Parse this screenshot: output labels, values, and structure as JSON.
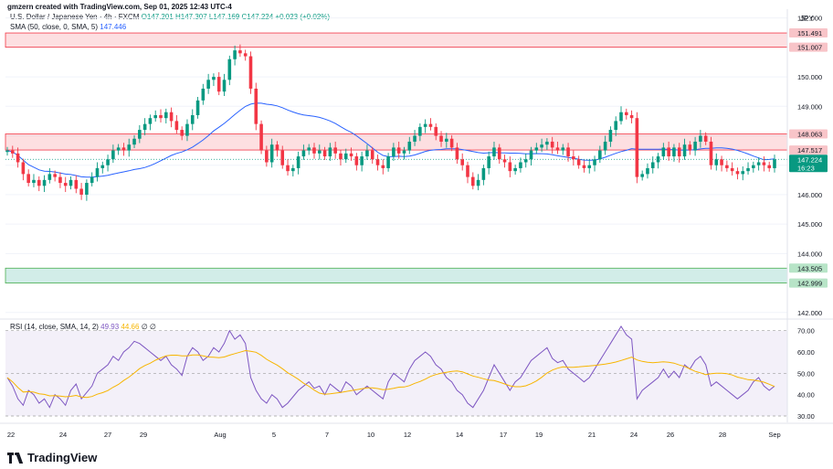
{
  "header": {
    "title": "gmzern created with TradingView.com, Sep 01, 2025 12:43 UTC-4"
  },
  "legend": {
    "symbol": "U.S. Dollar / Japanese Yen · 4h · FXCM",
    "ohlc": "O147.201 H147.307 L147.169 C147.224 +0.023 (+0.02%)",
    "sma_label": "SMA (50, close, 0, SMA, 5)",
    "sma_value": "147.446",
    "rsi_label": "RSI (14, close, SMA, 14, 2)",
    "rsi_value": "49.93",
    "rsi_sma_value": "44.66",
    "rsi_extra": "∅ ∅"
  },
  "currency": "JPY",
  "brand": "TradingView",
  "colors": {
    "up": "#089981",
    "down": "#f23645",
    "sma": "#2962ff",
    "rsi": "#7e57c2",
    "rsi_ma": "#f7b500"
  },
  "chart_data": [
    {
      "type": "candlestick",
      "ylim": [
        141.9,
        152.3
      ],
      "yticks": [
        "152.000",
        "151.000",
        "150.000",
        "149.000",
        "148.000",
        "147.000",
        "146.000",
        "145.000",
        "144.000",
        "143.000",
        "142.000"
      ],
      "xticks": [
        "22",
        "24",
        "27",
        "29",
        "Aug",
        "5",
        "7",
        "10",
        "12",
        "14",
        "17",
        "19",
        "21",
        "24",
        "26",
        "28",
        "Sep"
      ],
      "price_labels": [
        {
          "text": "151.491",
          "kind": "red"
        },
        {
          "text": "151.007",
          "kind": "red"
        },
        {
          "text": "148.063",
          "kind": "red"
        },
        {
          "text": "147.517",
          "kind": "red"
        },
        {
          "text": "147.224",
          "kind": "current"
        },
        {
          "text": "16:23",
          "kind": "current"
        },
        {
          "text": "143.505",
          "kind": "green"
        },
        {
          "text": "142.999",
          "kind": "green"
        }
      ],
      "zones": [
        {
          "from": 151.007,
          "to": 151.491,
          "kind": "resistance"
        },
        {
          "from": 147.517,
          "to": 148.063,
          "kind": "resistance"
        },
        {
          "from": 142.999,
          "to": 143.505,
          "kind": "support"
        }
      ],
      "close": [
        147.5,
        147.4,
        147.1,
        146.7,
        146.4,
        146.5,
        146.3,
        146.5,
        146.7,
        146.6,
        146.4,
        146.3,
        146.5,
        146.2,
        146.0,
        146.4,
        146.6,
        146.9,
        147.0,
        147.2,
        147.5,
        147.6,
        147.5,
        147.7,
        147.9,
        148.2,
        148.4,
        148.6,
        148.7,
        148.6,
        148.8,
        148.5,
        148.2,
        148.0,
        148.4,
        148.7,
        149.2,
        149.6,
        149.9,
        150.0,
        149.5,
        149.9,
        150.6,
        150.9,
        150.8,
        150.7,
        149.6,
        148.4,
        147.5,
        147.1,
        147.7,
        147.5,
        147.0,
        146.8,
        146.9,
        147.3,
        147.5,
        147.6,
        147.4,
        147.5,
        147.3,
        147.6,
        147.4,
        147.2,
        147.4,
        147.3,
        147.0,
        147.3,
        147.5,
        147.2,
        147.0,
        146.9,
        147.3,
        147.6,
        147.4,
        147.5,
        147.8,
        148.0,
        148.3,
        148.4,
        148.3,
        148.0,
        147.8,
        147.9,
        147.6,
        147.2,
        147.0,
        146.6,
        146.3,
        146.5,
        146.9,
        147.3,
        147.6,
        147.2,
        147.1,
        146.8,
        146.9,
        147.1,
        147.2,
        147.5,
        147.6,
        147.7,
        147.8,
        147.6,
        147.5,
        147.6,
        147.3,
        147.2,
        147.0,
        146.9,
        147.0,
        147.2,
        147.5,
        147.8,
        148.2,
        148.5,
        148.8,
        148.7,
        148.6,
        146.6,
        146.7,
        146.9,
        147.1,
        147.3,
        147.6,
        147.3,
        147.6,
        147.3,
        147.7,
        147.5,
        147.8,
        148.0,
        147.8,
        147.0,
        147.2,
        147.0,
        146.9,
        146.8,
        146.7,
        146.8,
        146.9,
        147.0,
        147.1,
        147.0,
        146.9,
        147.2
      ]
    },
    {
      "type": "line",
      "name": "RSI",
      "ylim": [
        27,
        72
      ],
      "yticks": [
        "70.00",
        "60.00",
        "50.00",
        "40.00",
        "30.00"
      ],
      "bands": [
        30,
        50,
        70
      ],
      "values": [
        48,
        44,
        38,
        35,
        42,
        40,
        36,
        38,
        34,
        40,
        38,
        35,
        42,
        45,
        38,
        41,
        44,
        50,
        52,
        54,
        58,
        56,
        60,
        62,
        65,
        64,
        62,
        60,
        58,
        56,
        58,
        54,
        52,
        49,
        58,
        62,
        60,
        56,
        58,
        62,
        60,
        64,
        70,
        66,
        68,
        64,
        48,
        42,
        38,
        36,
        40,
        38,
        34,
        36,
        39,
        42,
        44,
        46,
        43,
        44,
        40,
        45,
        43,
        41,
        46,
        44,
        40,
        42,
        44,
        42,
        40,
        38,
        46,
        50,
        48,
        46,
        52,
        56,
        58,
        60,
        58,
        54,
        52,
        48,
        46,
        42,
        40,
        36,
        34,
        38,
        42,
        48,
        54,
        50,
        46,
        42,
        46,
        48,
        52,
        56,
        58,
        60,
        62,
        57,
        55,
        56,
        52,
        50,
        48,
        46,
        48,
        52,
        56,
        60,
        64,
        68,
        72,
        68,
        66,
        38,
        42,
        44,
        46,
        48,
        52,
        48,
        51,
        48,
        54,
        52,
        56,
        58,
        54,
        44,
        46,
        44,
        42,
        40,
        38,
        40,
        42,
        46,
        48,
        44,
        42,
        44
      ]
    }
  ]
}
